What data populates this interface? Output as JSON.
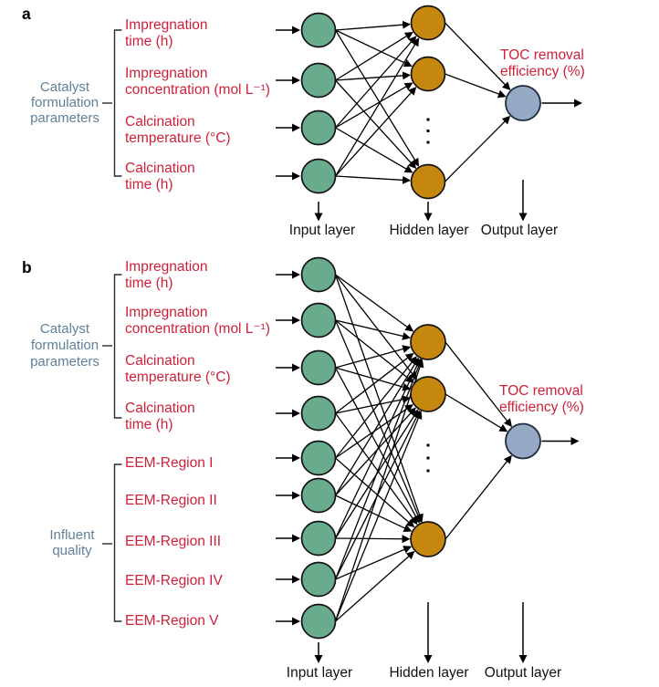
{
  "figure": {
    "description_visible_panels": [
      "a",
      "b"
    ]
  },
  "colors": {
    "input_node_fill": "#69AB8D",
    "hidden_node_fill": "#C6870F",
    "output_node_fill": "#95A8C4",
    "node_border": "#121212",
    "output_node_border": "#1F2D3D",
    "edge": "#000000",
    "bracket": "#2B2B2B",
    "red_label": "#CE2139",
    "blue_label": "#5E819A",
    "layer_label": "#111111"
  },
  "panel_a": {
    "letter": "a",
    "group": {
      "lines": [
        "Catalyst",
        "formulation",
        "parameters"
      ]
    },
    "inputs": [
      {
        "lines": [
          "Impregnation",
          "time (h)"
        ]
      },
      {
        "lines": [
          "Impregnation",
          "concentration (mol L⁻¹)"
        ]
      },
      {
        "lines": [
          "Calcination",
          "temperature (°C)"
        ]
      },
      {
        "lines": [
          "Calcination",
          "time (h)"
        ]
      }
    ],
    "output_label": {
      "lines": [
        "TOC removal",
        "efficiency (%)"
      ]
    },
    "layers": [
      "Input layer",
      "Hidden layer",
      "Output layer"
    ],
    "counts": {
      "input_nodes": 4,
      "hidden_nodes_visible": 3,
      "hidden_layer_ellipsis": true,
      "output_nodes": 1
    }
  },
  "panel_b": {
    "letter": "b",
    "groups": [
      {
        "lines": [
          "Catalyst",
          "formulation",
          "parameters"
        ]
      },
      {
        "lines": [
          "Influent",
          "quality"
        ]
      }
    ],
    "inputs_group1": [
      {
        "lines": [
          "Impregnation",
          "time (h)"
        ]
      },
      {
        "lines": [
          "Impregnation",
          "concentration (mol L⁻¹)"
        ]
      },
      {
        "lines": [
          "Calcination",
          "temperature (°C)"
        ]
      },
      {
        "lines": [
          "Calcination",
          "time (h)"
        ]
      }
    ],
    "inputs_group2": [
      {
        "lines": [
          "EEM-Region I"
        ]
      },
      {
        "lines": [
          "EEM-Region II"
        ]
      },
      {
        "lines": [
          "EEM-Region III"
        ]
      },
      {
        "lines": [
          "EEM-Region IV"
        ]
      },
      {
        "lines": [
          "EEM-Region V"
        ]
      }
    ],
    "output_label": {
      "lines": [
        "TOC removal",
        "efficiency (%)"
      ]
    },
    "layers": [
      "Input layer",
      "Hidden layer",
      "Output layer"
    ],
    "counts": {
      "input_nodes": 9,
      "hidden_nodes_visible": 3,
      "hidden_layer_ellipsis": true,
      "output_nodes": 1
    }
  }
}
